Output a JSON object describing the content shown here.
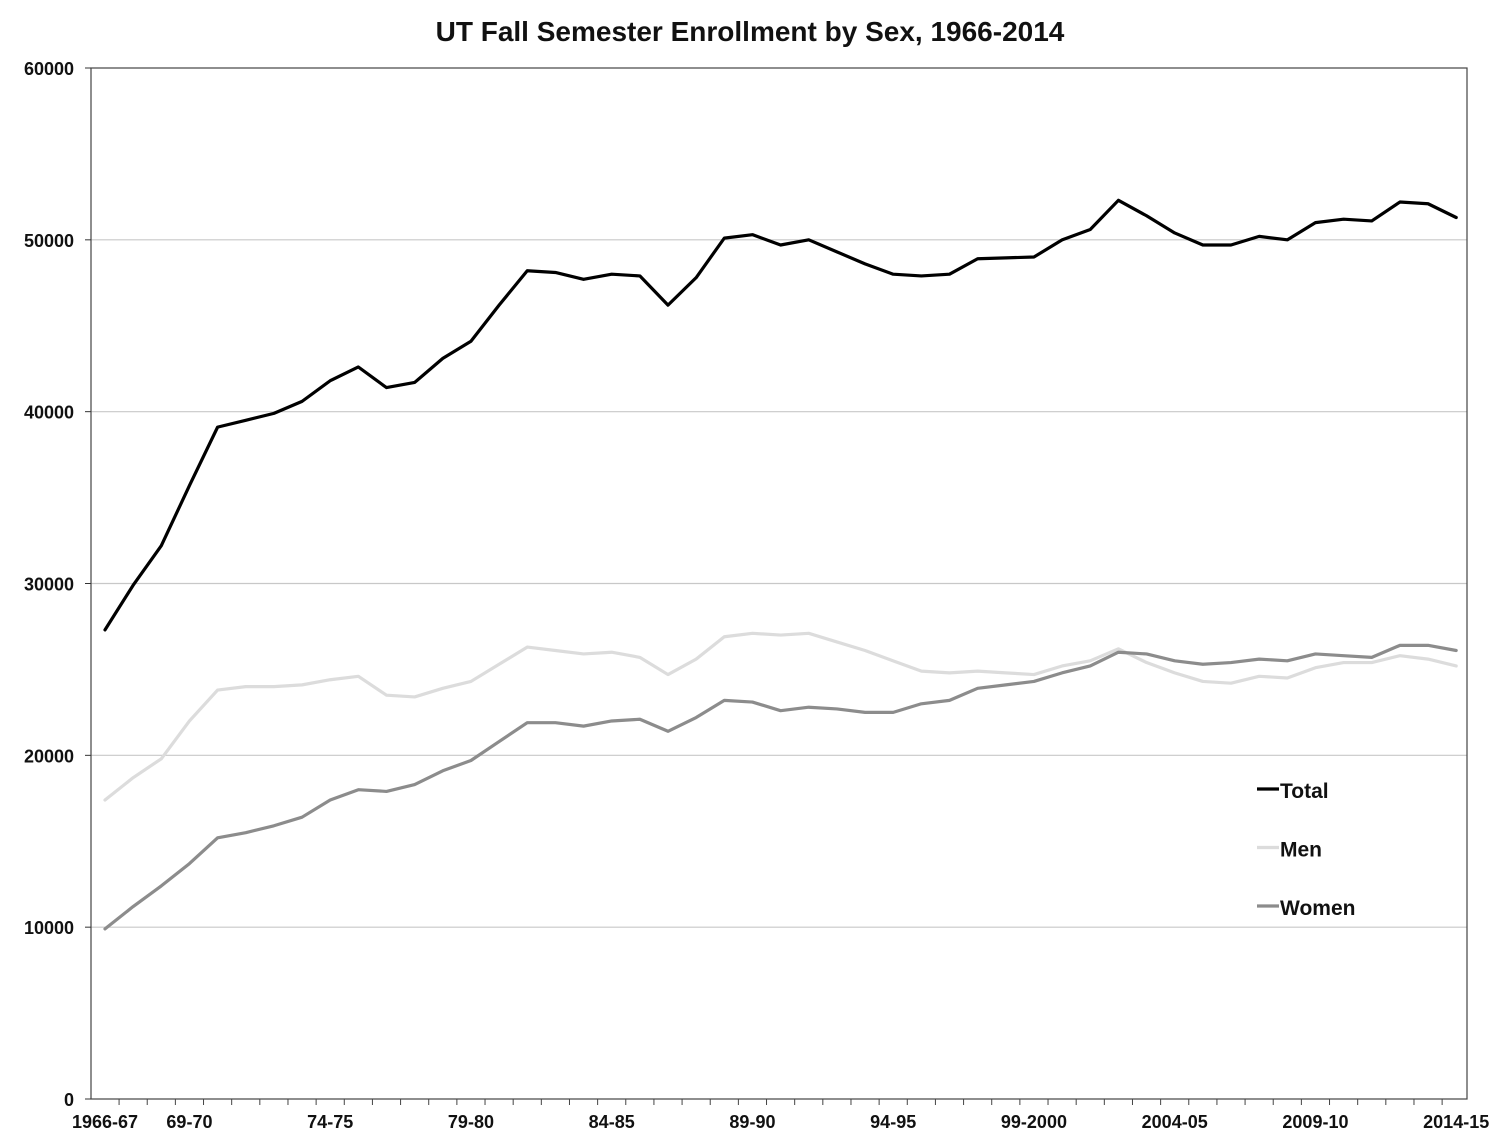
{
  "chart_data": {
    "type": "line",
    "title": "UT Fall Semester Enrollment by Sex, 1966-2014",
    "xlabel": "",
    "ylabel": "",
    "ylim": [
      0,
      60000
    ],
    "y_ticks": [
      0,
      10000,
      20000,
      30000,
      40000,
      50000,
      60000
    ],
    "grid": "horizontal",
    "legend_position": "bottom-right",
    "x_start_year": 1966,
    "x_tick_labels": [
      {
        "index": 0,
        "label": "1966-67"
      },
      {
        "index": 3,
        "label": "69-70"
      },
      {
        "index": 8,
        "label": "74-75"
      },
      {
        "index": 13,
        "label": "79-80"
      },
      {
        "index": 18,
        "label": "84-85"
      },
      {
        "index": 23,
        "label": "89-90"
      },
      {
        "index": 28,
        "label": "94-95"
      },
      {
        "index": 33,
        "label": "99-2000"
      },
      {
        "index": 38,
        "label": "2004-05"
      },
      {
        "index": 43,
        "label": "2009-10"
      },
      {
        "index": 48,
        "label": "2014-15"
      }
    ],
    "series": [
      {
        "name": "Total",
        "color": "#000000",
        "values": [
          27300,
          29900,
          32200,
          35700,
          39100,
          39500,
          39900,
          40600,
          41800,
          42600,
          41400,
          41700,
          43100,
          44100,
          46200,
          48200,
          48100,
          47700,
          48000,
          47900,
          46200,
          47800,
          50100,
          50300,
          49700,
          50000,
          49300,
          48600,
          48000,
          47900,
          48000,
          48900,
          48950,
          49000,
          50000,
          50600,
          52300,
          51400,
          50400,
          49700,
          49700,
          50200,
          50000,
          51000,
          51200,
          51100,
          52200,
          52100,
          51300
        ]
      },
      {
        "name": "Men",
        "color": "#dcdcdc",
        "values": [
          17400,
          18700,
          19800,
          22000,
          23800,
          24000,
          24000,
          24100,
          24400,
          24600,
          23500,
          23400,
          23900,
          24300,
          25300,
          26300,
          26100,
          25900,
          26000,
          25700,
          24700,
          25600,
          26900,
          27100,
          27000,
          27100,
          26600,
          26100,
          25500,
          24900,
          24800,
          24900,
          24800,
          24700,
          25200,
          25500,
          26200,
          25400,
          24800,
          24300,
          24200,
          24600,
          24500,
          25100,
          25400,
          25400,
          25800,
          25600,
          25200
        ]
      },
      {
        "name": "Women",
        "color": "#8c8c8c",
        "values": [
          9900,
          11200,
          12400,
          13700,
          15200,
          15500,
          15900,
          16400,
          17400,
          18000,
          17900,
          18300,
          19100,
          19700,
          20800,
          21900,
          21900,
          21700,
          22000,
          22100,
          21400,
          22200,
          23200,
          23100,
          22600,
          22800,
          22700,
          22500,
          22500,
          23000,
          23200,
          23900,
          24100,
          24300,
          24800,
          25200,
          26000,
          25900,
          25500,
          25300,
          25400,
          25600,
          25500,
          25900,
          25800,
          25700,
          26400,
          26400,
          26100
        ]
      }
    ]
  }
}
